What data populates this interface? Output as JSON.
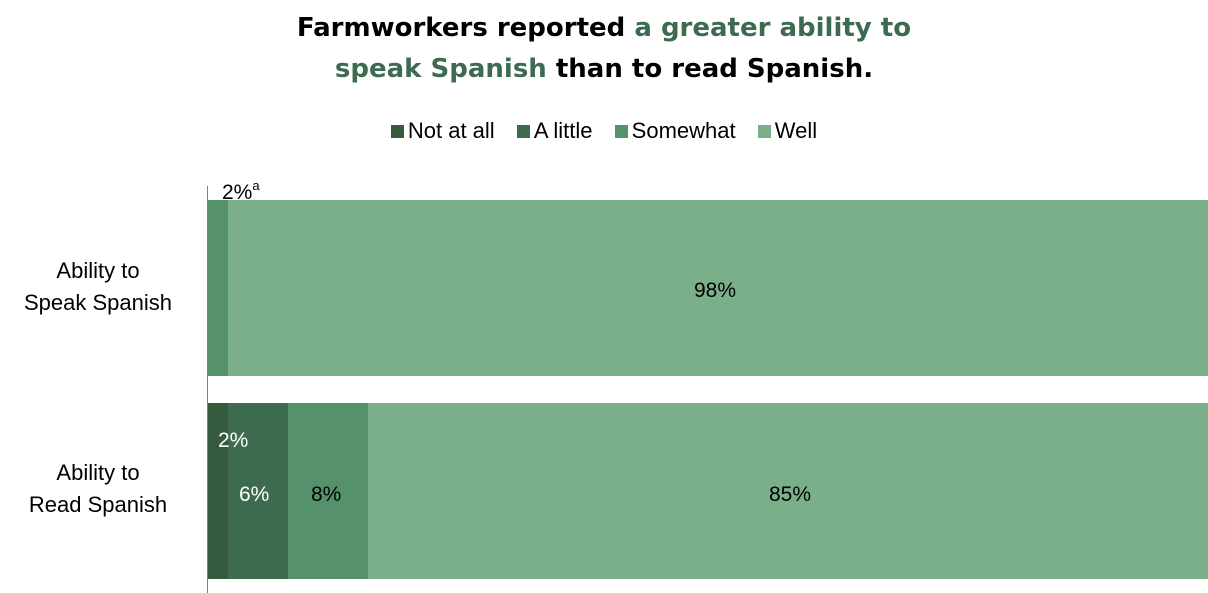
{
  "title": {
    "part1": "Farmworkers reported ",
    "highlight1": "a greater ability to",
    "highlight2": "speak Spanish",
    "part2": " than to read Spanish."
  },
  "colors": {
    "not_at_all": "#355b3f",
    "a_little": "#3d6b4f",
    "somewhat": "#55916a",
    "well": "#7aaf8a",
    "title_highlight": "#3d6b4f",
    "axis": "#7f7f7f"
  },
  "legend": [
    "Not at all",
    "A little",
    "Somewhat",
    "Well"
  ],
  "chart_data": {
    "type": "bar",
    "orientation": "horizontal",
    "stacked": true,
    "categories": [
      "Ability to Speak Spanish",
      "Ability to Read Spanish"
    ],
    "series": [
      {
        "name": "Not at all",
        "values": [
          0,
          2
        ]
      },
      {
        "name": "A little",
        "values": [
          0,
          6
        ]
      },
      {
        "name": "Somewhat",
        "values": [
          2,
          8
        ]
      },
      {
        "name": "Well",
        "values": [
          98,
          85
        ]
      }
    ],
    "data_labels": {
      "speak": {
        "somewhat": "2%",
        "somewhat_note": "a",
        "well": "98%"
      },
      "read": {
        "not_at_all": "2%",
        "a_little": "6%",
        "somewhat": "8%",
        "well": "85%"
      }
    },
    "xlim": [
      0,
      100
    ],
    "legend_position": "top",
    "grid": false
  },
  "ylabels": {
    "speak_line1": "Ability to",
    "speak_line2": "Speak Spanish",
    "read_line1": "Ability to",
    "read_line2": "Read Spanish"
  }
}
